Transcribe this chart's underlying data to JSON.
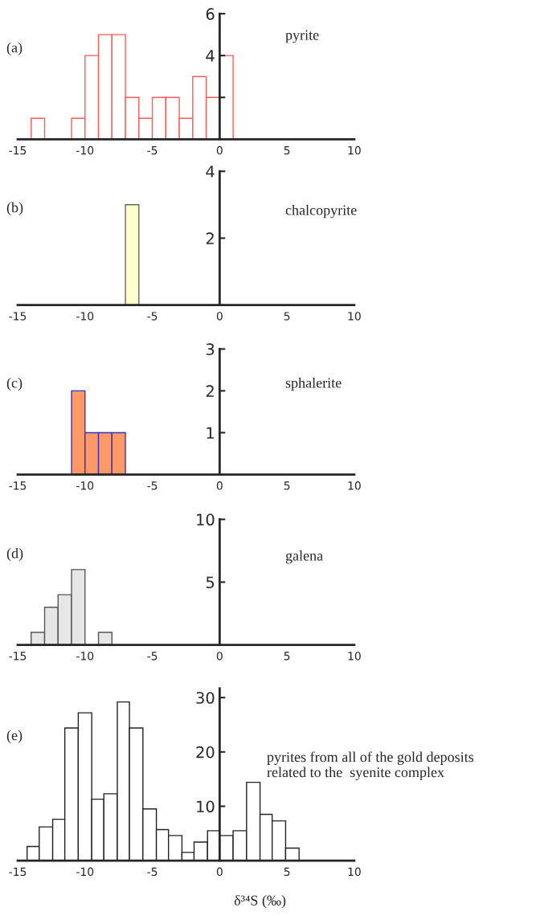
{
  "chart_data": [
    {
      "type": "histogram",
      "bins": [
        -14,
        -13,
        -12,
        -11,
        -10,
        -9,
        -8,
        -7,
        -6,
        -5,
        -4,
        -3,
        -2,
        -1,
        0,
        1
      ],
      "values": [
        1,
        0,
        0,
        1,
        4,
        5,
        5,
        2,
        1,
        2,
        2,
        1,
        3,
        2,
        4
      ],
      "color": "#ff5a5a",
      "xlim": [
        -15,
        10
      ],
      "xticks": [
        -15,
        -10,
        -5,
        0,
        5,
        10
      ],
      "ylim": [
        0,
        6
      ],
      "yticks": [
        {
          "value": 2,
          "label": null
        },
        4,
        6
      ],
      "annotations": [
        "(a)",
        "pyrite"
      ]
    },
    {
      "type": "histogram",
      "bins": [
        -7,
        -6
      ],
      "values": [
        3
      ],
      "color": "#ffffcc",
      "xlim": [
        -15,
        10
      ],
      "xticks": [
        -15,
        -10,
        -5,
        0,
        5,
        10
      ],
      "ylim": [
        0,
        4
      ],
      "yticks": [
        2,
        4
      ],
      "annotations": [
        "(b)",
        "chalcopyrite"
      ]
    },
    {
      "type": "histogram",
      "bins": [
        -11,
        -10,
        -9,
        -8,
        -7
      ],
      "values": [
        2,
        1,
        1,
        1
      ],
      "color": "#ff9966",
      "xlim": [
        -15,
        10
      ],
      "xticks": [
        -15,
        -10,
        -5,
        0,
        5,
        10
      ],
      "ylim": [
        0,
        3
      ],
      "yticks": [
        1,
        2,
        3
      ],
      "annotations": [
        "(c)",
        "sphalerite"
      ]
    },
    {
      "type": "histogram",
      "bins": [
        -14,
        -13,
        -12,
        -11,
        -10,
        -9,
        -8
      ],
      "values": [
        1,
        3,
        4,
        6,
        0,
        1
      ],
      "color": "#e6e6e6",
      "xlim": [
        -15,
        10
      ],
      "xticks": [
        -15,
        -10,
        -5,
        0,
        5,
        10
      ],
      "ylim": [
        0,
        10
      ],
      "yticks": [
        5,
        10
      ],
      "annotations": [
        "(d)",
        "galena"
      ]
    },
    {
      "type": "histogram",
      "bins": [
        -14.3,
        -13.4,
        -12.4,
        -11.5,
        -10.5,
        -9.5,
        -8.6,
        -7.6,
        -6.7,
        -5.7,
        -4.7,
        -3.8,
        -2.8,
        -1.9,
        -0.9,
        0,
        1,
        2,
        3,
        3.9,
        4.9,
        5.9
      ],
      "values": [
        2.6,
        6.2,
        7.6,
        24.4,
        27.2,
        11.3,
        12.3,
        29.2,
        24.4,
        9.5,
        5.7,
        4.6,
        1.5,
        3.4,
        5.5,
        4.6,
        5.5,
        14.4,
        8.5,
        7.3,
        2.3
      ],
      "color": "#ffffff",
      "xlim": [
        -15,
        10
      ],
      "xticks": [
        -15,
        -10,
        -5,
        0,
        5,
        10
      ],
      "ylim": [
        0,
        31.7
      ],
      "yticks": [
        10,
        20,
        30
      ],
      "xlabel": "δ³⁴S (‰)",
      "annotations": [
        "(e)",
        "pyrites from all of the gold deposits\nrelated to the  syenite complex"
      ]
    }
  ]
}
